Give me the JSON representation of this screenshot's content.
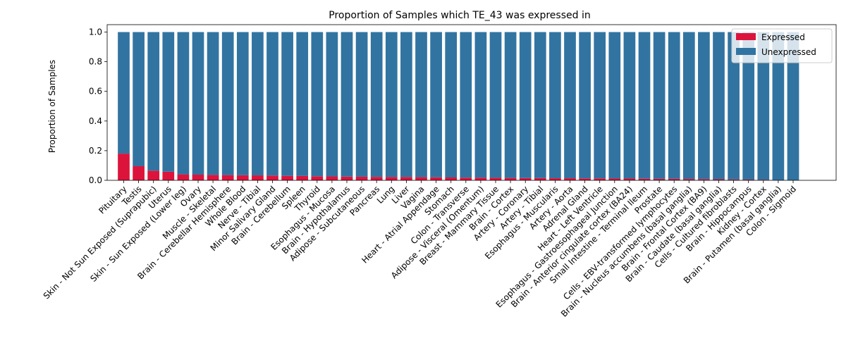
{
  "chart_data": {
    "type": "bar",
    "stacked": true,
    "title": "Proportion of Samples which TE_43 was expressed in",
    "xlabel": "",
    "ylabel": "Proportion of Samples",
    "ylim": [
      0,
      1.05
    ],
    "yticks": [
      "0.0",
      "0.2",
      "0.4",
      "0.6",
      "0.8",
      "1.0"
    ],
    "ytick_values": [
      0,
      0.2,
      0.4,
      0.6,
      0.8,
      1.0
    ],
    "grid": false,
    "legend_position": "top-right",
    "categories": [
      "Pituitary",
      "Testis",
      "Skin - Not Sun Exposed (Suprapubic)",
      "Uterus",
      "Skin - Sun Exposed (Lower leg)",
      "Ovary",
      "Muscle - Skeletal",
      "Brain - Cerebellar Hemisphere",
      "Whole Blood",
      "Nerve - Tibial",
      "Minor Salivary Gland",
      "Brain - Cerebellum",
      "Spleen",
      "Thyroid",
      "Esophagus - Mucosa",
      "Brain - Hypothalamus",
      "Adipose - Subcutaneous",
      "Pancreas",
      "Lung",
      "Liver",
      "Vagina",
      "Heart - Atrial Appendage",
      "Stomach",
      "Colon - Transverse",
      "Adipose - Visceral (Omentum)",
      "Breast - Mammary Tissue",
      "Brain - Cortex",
      "Artery - Coronary",
      "Artery - Tibial",
      "Esophagus - Muscularis",
      "Artery - Aorta",
      "Adrenal Gland",
      "Heart - Left Ventricle",
      "Esophagus - Gastroesophageal Junction",
      "Brain - Anterior cingulate cortex (BA24)",
      "Small Intestine - Terminal Ileum",
      "Prostate",
      "Cells - EBV-transformed lymphocytes",
      "Brain - Nucleus accumbens (basal ganglia)",
      "Brain - Frontal Cortex (BA9)",
      "Brain - Caudate (basal ganglia)",
      "Cells - Cultured fibroblasts",
      "Brain - Hippocampus",
      "Kidney - Cortex",
      "Brain - Putamen (basal ganglia)",
      "Colon - Sigmoid"
    ],
    "series": [
      {
        "name": "Expressed",
        "color": "#dc143c",
        "values": [
          0.18,
          0.095,
          0.065,
          0.058,
          0.04,
          0.038,
          0.036,
          0.035,
          0.034,
          0.033,
          0.032,
          0.03,
          0.029,
          0.027,
          0.026,
          0.025,
          0.024,
          0.023,
          0.022,
          0.022,
          0.021,
          0.02,
          0.019,
          0.018,
          0.018,
          0.017,
          0.016,
          0.015,
          0.015,
          0.014,
          0.014,
          0.013,
          0.013,
          0.012,
          0.012,
          0.011,
          0.01,
          0.01,
          0.009,
          0.008,
          0.007,
          0.006,
          0.005,
          0.004,
          0.002,
          0.0
        ]
      },
      {
        "name": "Unexpressed",
        "color": "#3274a1",
        "values": [
          0.82,
          0.905,
          0.935,
          0.942,
          0.96,
          0.962,
          0.964,
          0.965,
          0.966,
          0.967,
          0.968,
          0.97,
          0.971,
          0.973,
          0.974,
          0.975,
          0.976,
          0.977,
          0.978,
          0.978,
          0.979,
          0.98,
          0.981,
          0.982,
          0.982,
          0.983,
          0.984,
          0.985,
          0.985,
          0.986,
          0.986,
          0.987,
          0.987,
          0.988,
          0.988,
          0.989,
          0.99,
          0.99,
          0.991,
          0.992,
          0.993,
          0.994,
          0.995,
          0.996,
          0.998,
          1.0
        ]
      }
    ]
  }
}
